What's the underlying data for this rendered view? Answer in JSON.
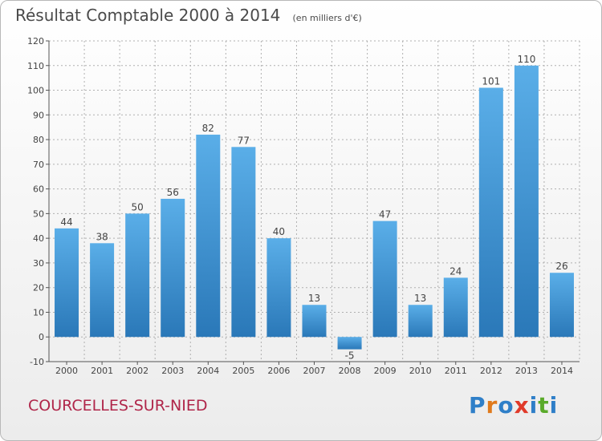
{
  "title": "Résultat Comptable 2000 à 2014",
  "subtitle": "(en milliers d'€)",
  "commune": "COURCELLES-SUR-NIED",
  "logo": {
    "letters": [
      "P",
      "r",
      "o",
      "x",
      "i",
      "t",
      "i"
    ],
    "colors": [
      "#2f7fc8",
      "#e07a1c",
      "#2f7fc8",
      "#e03a2a",
      "#2f7fc8",
      "#5aaa2a",
      "#2f7fc8"
    ]
  },
  "colors": {
    "bar_top": "#5aaee8",
    "bar_bottom": "#2a78b8",
    "axis": "#555555",
    "grid": "#b0b0b0",
    "commune": "#b0264a"
  },
  "chart_data": {
    "type": "bar",
    "categories": [
      "2000",
      "2001",
      "2002",
      "2003",
      "2004",
      "2005",
      "2006",
      "2007",
      "2008",
      "2009",
      "2010",
      "2011",
      "2012",
      "2013",
      "2014"
    ],
    "values": [
      44,
      38,
      50,
      56,
      82,
      77,
      40,
      13,
      -5,
      47,
      13,
      24,
      101,
      110,
      26
    ],
    "ylim": [
      -10,
      120
    ],
    "yticks": [
      -10,
      0,
      10,
      20,
      30,
      40,
      50,
      60,
      70,
      80,
      90,
      100,
      110,
      120
    ],
    "grid": true,
    "data_labels": true
  }
}
